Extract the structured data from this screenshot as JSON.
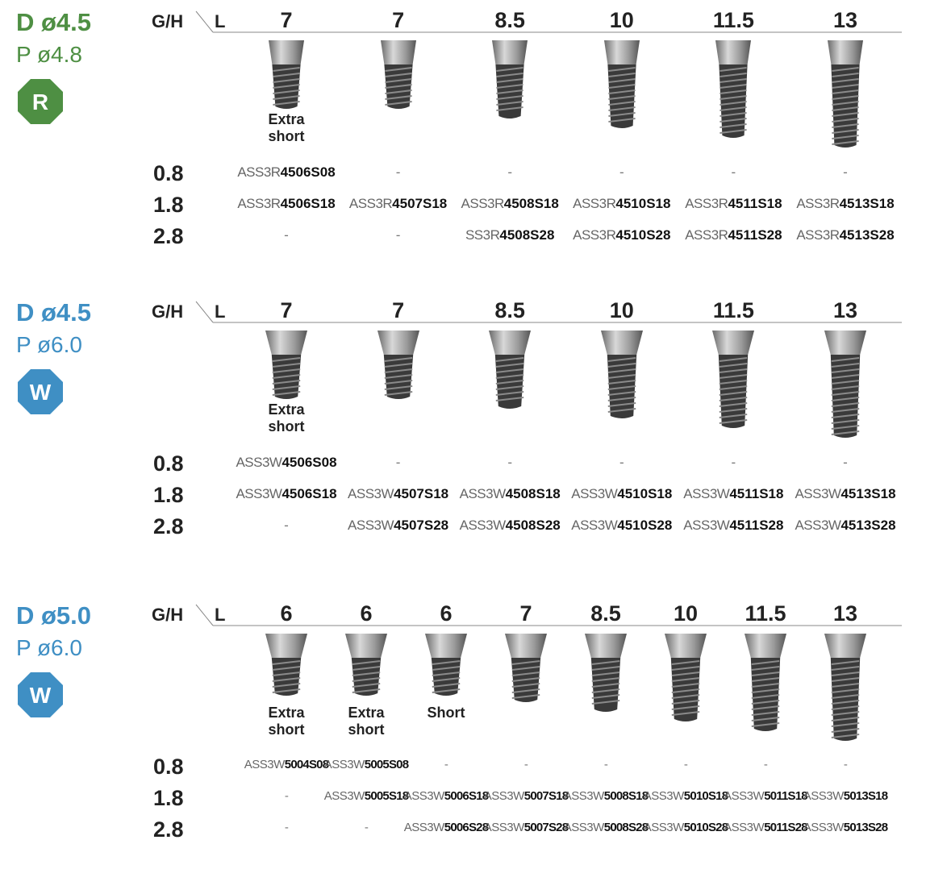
{
  "sections": [
    {
      "d": "D ø4.5",
      "p": "P ø4.8",
      "badge": "R",
      "color": "#4e8f43",
      "gh_header": "G/H",
      "l_header": "L",
      "lengths": [
        "7",
        "7",
        "8.5",
        "10",
        "11.5",
        "13"
      ],
      "notes": [
        "Extra short",
        null,
        null,
        null,
        null,
        null
      ],
      "rows": [
        {
          "gh": "0.8",
          "cells": [
            {
              "prefix": "ASS3R",
              "code": "4506S08"
            },
            "-",
            "-",
            "-",
            "-",
            "-"
          ]
        },
        {
          "gh": "1.8",
          "cells": [
            {
              "prefix": "ASS3R",
              "code": "4506S18"
            },
            {
              "prefix": "ASS3R",
              "code": "4507S18"
            },
            {
              "prefix": "ASS3R",
              "code": "4508S18"
            },
            {
              "prefix": "ASS3R",
              "code": "4510S18"
            },
            {
              "prefix": "ASS3R",
              "code": "4511S18"
            },
            {
              "prefix": "ASS3R",
              "code": "4513S18"
            }
          ]
        },
        {
          "gh": "2.8",
          "cells": [
            "-",
            "-",
            {
              "prefix": "SS3R",
              "code": "4508S28"
            },
            {
              "prefix": "ASS3R",
              "code": "4510S28"
            },
            {
              "prefix": "ASS3R",
              "code": "4511S28"
            },
            {
              "prefix": "ASS3R",
              "code": "4513S28"
            }
          ]
        }
      ]
    },
    {
      "d": "D ø4.5",
      "p": "P ø6.0",
      "badge": "W",
      "color": "#3f8fc4",
      "gh_header": "G/H",
      "l_header": "L",
      "lengths": [
        "7",
        "7",
        "8.5",
        "10",
        "11.5",
        "13"
      ],
      "notes": [
        "Extra short",
        null,
        null,
        null,
        null,
        null
      ],
      "rows": [
        {
          "gh": "0.8",
          "cells": [
            {
              "prefix": "ASS3W",
              "code": "4506S08"
            },
            "-",
            "-",
            "-",
            "-",
            "-"
          ]
        },
        {
          "gh": "1.8",
          "cells": [
            {
              "prefix": "ASS3W",
              "code": "4506S18"
            },
            {
              "prefix": "ASS3W",
              "code": "4507S18"
            },
            {
              "prefix": "ASS3W",
              "code": "4508S18"
            },
            {
              "prefix": "ASS3W",
              "code": "4510S18"
            },
            {
              "prefix": "ASS3W",
              "code": "4511S18"
            },
            {
              "prefix": "ASS3W",
              "code": "4513S18"
            }
          ]
        },
        {
          "gh": "2.8",
          "cells": [
            "-",
            {
              "prefix": "ASS3W",
              "code": "4507S28"
            },
            {
              "prefix": "ASS3W",
              "code": "4508S28"
            },
            {
              "prefix": "ASS3W",
              "code": "4510S28"
            },
            {
              "prefix": "ASS3W",
              "code": "4511S28"
            },
            {
              "prefix": "ASS3W",
              "code": "4513S28"
            }
          ]
        }
      ]
    },
    {
      "d": "D ø5.0",
      "p": "P ø6.0",
      "badge": "W",
      "color": "#3f8fc4",
      "gh_header": "G/H",
      "l_header": "L",
      "lengths": [
        "6",
        "6",
        "6",
        "7",
        "8.5",
        "10",
        "11.5",
        "13"
      ],
      "notes": [
        "Extra short",
        "Extra short",
        "Short",
        null,
        null,
        null,
        null,
        null
      ],
      "rows": [
        {
          "gh": "0.8",
          "cells": [
            {
              "prefix": "ASS3W",
              "code": "5004S08"
            },
            {
              "prefix": "ASS3W",
              "code": "5005S08"
            },
            "-",
            "-",
            "-",
            "-",
            "-",
            "-"
          ]
        },
        {
          "gh": "1.8",
          "cells": [
            "-",
            {
              "prefix": "ASS3W",
              "code": "5005S18"
            },
            {
              "prefix": "ASS3W",
              "code": "5006S18"
            },
            {
              "prefix": "ASS3W",
              "code": "5007S18"
            },
            {
              "prefix": "ASS3W",
              "code": "5008S18"
            },
            {
              "prefix": "ASS3W",
              "code": "5010S18"
            },
            {
              "prefix": "ASS3W",
              "code": "5011S18"
            },
            {
              "prefix": "ASS3W",
              "code": "5013S18"
            }
          ]
        },
        {
          "gh": "2.8",
          "cells": [
            "-",
            "-",
            {
              "prefix": "ASS3W",
              "code": "5006S28"
            },
            {
              "prefix": "ASS3W",
              "code": "5007S28"
            },
            {
              "prefix": "ASS3W",
              "code": "5008S28"
            },
            {
              "prefix": "ASS3W",
              "code": "5010S28"
            },
            {
              "prefix": "ASS3W",
              "code": "5011S28"
            },
            {
              "prefix": "ASS3W",
              "code": "5013S28"
            }
          ]
        }
      ]
    }
  ]
}
